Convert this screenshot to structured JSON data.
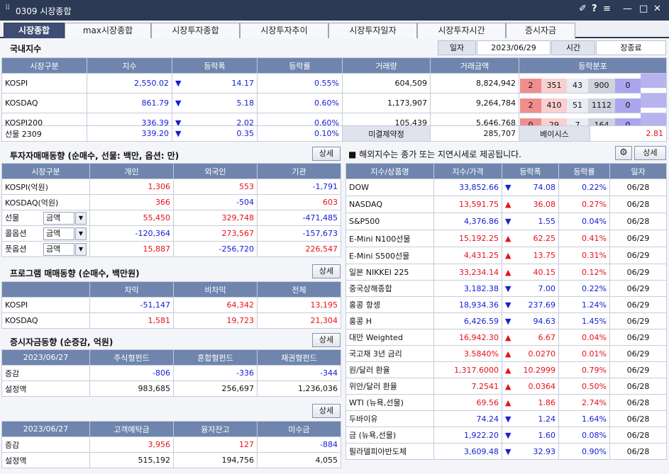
{
  "window": {
    "title": "0309 시장종합",
    "icons": [
      "pin-icon",
      "help-icon",
      "menu-icon",
      "minimize-icon",
      "maximize-icon",
      "close-icon"
    ],
    "glyphs": {
      "pin": "✐",
      "help": "?",
      "menu": "≡",
      "min": "—",
      "max": "□",
      "close": "✕"
    }
  },
  "tabs": [
    "시장종합",
    "max시장종합",
    "시장투자종합",
    "시장투자추이",
    "시장투자일자",
    "시장투자시간",
    "증시자금"
  ],
  "domestic": {
    "title": "국내지수",
    "date_label": "일자",
    "date_value": "2023/06/29",
    "time_label": "시간",
    "time_value": "장종료",
    "headers": [
      "시장구분",
      "지수",
      "등락폭",
      "등락률",
      "거래량",
      "거래금액",
      "등락분포"
    ],
    "rows": [
      {
        "name": "KOSPI",
        "index": "2,550.02",
        "arrow": "▼",
        "change": "14.17",
        "rate": "0.55%",
        "volume": "604,509",
        "amount": "8,824,942",
        "dist": [
          "2",
          "351",
          "43",
          "900",
          "0"
        ]
      },
      {
        "name": "KOSDAQ",
        "index": "861.79",
        "arrow": "▼",
        "change": "5.18",
        "rate": "0.60%",
        "volume": "1,173,907",
        "amount": "9,264,784",
        "dist": [
          "2",
          "410",
          "51",
          "1112",
          "0"
        ]
      },
      {
        "name": "KOSPI200",
        "index": "336.39",
        "arrow": "▼",
        "change": "2.02",
        "rate": "0.60%",
        "volume": "105,439",
        "amount": "5,646,768",
        "dist": [
          "0",
          "29",
          "7",
          "164",
          "0"
        ]
      }
    ],
    "futures": {
      "name": "선물 2309",
      "index": "339.20",
      "arrow": "▼",
      "change": "0.35",
      "rate": "0.10%",
      "oi_label": "미결제약정",
      "oi_value": "285,707",
      "basis_label": "베이시스",
      "basis_value": "2.81"
    }
  },
  "investor": {
    "title": "투자자매매동향 (순매수, 선물: 백만, 옵션: 만)",
    "detail": "상세",
    "headers": [
      "시장구분",
      "개인",
      "외국인",
      "기관"
    ],
    "rows": [
      {
        "name": "KOSPI(억원)",
        "v": [
          "1,306",
          "553",
          "-1,791"
        ]
      },
      {
        "name": "KOSDAQ(억원)",
        "v": [
          "366",
          "-504",
          "603"
        ]
      },
      {
        "name": "선물",
        "sel": "금액",
        "v": [
          "55,450",
          "329,748",
          "-471,485"
        ]
      },
      {
        "name": "콜옵션",
        "sel": "금액",
        "v": [
          "-120,364",
          "273,567",
          "-157,673"
        ]
      },
      {
        "name": "풋옵션",
        "sel": "금액",
        "v": [
          "15,887",
          "-256,720",
          "226,547"
        ]
      }
    ]
  },
  "program": {
    "title": "프로그램 매매동향 (순매수, 백만원)",
    "detail": "상세",
    "headers": [
      "",
      "차익",
      "비차익",
      "전체"
    ],
    "rows": [
      {
        "name": "KOSPI",
        "v": [
          "-51,147",
          "64,342",
          "13,195"
        ]
      },
      {
        "name": "KOSDAQ",
        "v": [
          "1,581",
          "19,723",
          "21,304"
        ]
      }
    ]
  },
  "funds": {
    "title": "증시자금동향 (순증감, 억원)",
    "detail": "상세",
    "headers": [
      "2023/06/27",
      "주식형펀드",
      "혼합형펀드",
      "채권형펀드"
    ],
    "rows": [
      {
        "name": "증감",
        "v": [
          "-806",
          "-336",
          "-344"
        ]
      },
      {
        "name": "설정액",
        "v": [
          "983,685",
          "256,697",
          "1,236,036"
        ]
      }
    ]
  },
  "deposits": {
    "detail": "상세",
    "headers": [
      "2023/06/27",
      "고객예탁금",
      "융자잔고",
      "미수금"
    ],
    "rows": [
      {
        "name": "증감",
        "v": [
          "3,956",
          "127",
          "-884"
        ]
      },
      {
        "name": "설정액",
        "v": [
          "515,192",
          "194,756",
          "4,055"
        ]
      }
    ]
  },
  "overseas": {
    "note": "■ 해외지수는 종가 또는 지연시세로 제공됩니다.",
    "detail": "상세",
    "headers": [
      "지수/상품명",
      "지수/가격",
      "등락폭",
      "등락률",
      "일자"
    ],
    "rows": [
      {
        "name": "DOW",
        "price": "33,852.66",
        "arrow": "▼",
        "change": "74.08",
        "rate": "0.22%",
        "date": "06/28"
      },
      {
        "name": "NASDAQ",
        "price": "13,591.75",
        "arrow": "▲",
        "change": "36.08",
        "rate": "0.27%",
        "date": "06/28"
      },
      {
        "name": "S&P500",
        "price": "4,376.86",
        "arrow": "▼",
        "change": "1.55",
        "rate": "0.04%",
        "date": "06/28"
      },
      {
        "name": "E-Mini N100선물",
        "price": "15,192.25",
        "arrow": "▲",
        "change": "62.25",
        "rate": "0.41%",
        "date": "06/29"
      },
      {
        "name": "E-Mini S500선물",
        "price": "4,431.25",
        "arrow": "▲",
        "change": "13.75",
        "rate": "0.31%",
        "date": "06/29"
      },
      {
        "name": "일본 NIKKEI 225",
        "price": "33,234.14",
        "arrow": "▲",
        "change": "40.15",
        "rate": "0.12%",
        "date": "06/29"
      },
      {
        "name": "중국상해종합",
        "price": "3,182.38",
        "arrow": "▼",
        "change": "7.00",
        "rate": "0.22%",
        "date": "06/29"
      },
      {
        "name": "홍콩 항셍",
        "price": "18,934.36",
        "arrow": "▼",
        "change": "237.69",
        "rate": "1.24%",
        "date": "06/29"
      },
      {
        "name": "홍콩 H",
        "price": "6,426.59",
        "arrow": "▼",
        "change": "94.63",
        "rate": "1.45%",
        "date": "06/29"
      },
      {
        "name": "대만 Weighted",
        "price": "16,942.30",
        "arrow": "▲",
        "change": "6.67",
        "rate": "0.04%",
        "date": "06/29"
      },
      {
        "name": "국고채 3년 금리",
        "price": "3.5840%",
        "arrow": "▲",
        "change": "0.0270",
        "rate": "0.01%",
        "date": "06/29"
      },
      {
        "name": "원/달러 환율",
        "price": "1,317.6000",
        "arrow": "▲",
        "change": "10.2999",
        "rate": "0.79%",
        "date": "06/29"
      },
      {
        "name": "위안/달러 환율",
        "price": "7.2541",
        "arrow": "▲",
        "change": "0.0364",
        "rate": "0.50%",
        "date": "06/28"
      },
      {
        "name": "WTI (뉴욕,선물)",
        "price": "69.56",
        "arrow": "▲",
        "change": "1.86",
        "rate": "2.74%",
        "date": "06/28"
      },
      {
        "name": "두바이유",
        "price": "74.24",
        "arrow": "▼",
        "change": "1.24",
        "rate": "1.64%",
        "date": "06/28"
      },
      {
        "name": "금 (뉴욕,선물)",
        "price": "1,922.20",
        "arrow": "▼",
        "change": "1.60",
        "rate": "0.08%",
        "date": "06/28"
      },
      {
        "name": "필라델피아반도체",
        "price": "3,609.48",
        "arrow": "▼",
        "change": "32.93",
        "rate": "0.90%",
        "date": "06/28"
      }
    ]
  },
  "colors": {
    "header": "#6f85ad",
    "title_bar": "#2d3a55",
    "up": "#e8101a",
    "down": "#1420d8"
  }
}
